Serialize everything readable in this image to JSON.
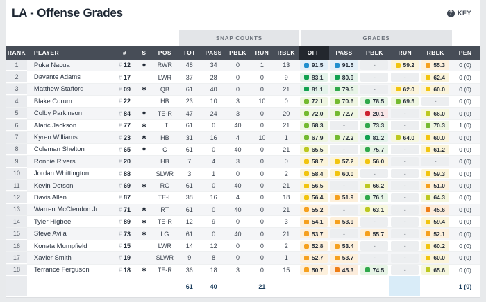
{
  "page": {
    "title": "LA - Offense Grades",
    "key_label": "KEY",
    "key_icon_glyph": "?"
  },
  "colors": {
    "header_bg": "#474d57",
    "sorted_header_bg": "#23272e",
    "footer_highlight": "#d9ecf8",
    "band_bg": "#e3e5e8"
  },
  "table": {
    "group_headers": {
      "snap_counts": "SNAP COUNTS",
      "grades": "GRADES"
    },
    "columns": {
      "rank": "RANK",
      "player": "PLAYER",
      "jersey": "#",
      "starter": "S",
      "pos": "POS",
      "snaps": [
        "TOT",
        "PASS",
        "PBLK",
        "RUN",
        "RBLK"
      ],
      "grades": [
        "OFF",
        "PASS",
        "PBLK",
        "RUN",
        "RBLK"
      ],
      "pen": "PEN"
    },
    "sorted_column": "OFF",
    "starter_glyph": "✱",
    "dash": "-",
    "rows": [
      {
        "rank": "1",
        "player": "Puka Nacua",
        "jersey": "12",
        "starter": true,
        "pos": "RWR",
        "snaps": [
          "48",
          "34",
          "0",
          "1",
          "13"
        ],
        "grades": [
          "91.5",
          "91.5",
          null,
          "59.2",
          "55.3"
        ],
        "pen": "0 (0)"
      },
      {
        "rank": "2",
        "player": "Davante Adams",
        "jersey": "17",
        "starter": false,
        "pos": "LWR",
        "snaps": [
          "37",
          "28",
          "0",
          "0",
          "9"
        ],
        "grades": [
          "83.1",
          "80.9",
          null,
          null,
          "62.4"
        ],
        "pen": "0 (0)"
      },
      {
        "rank": "3",
        "player": "Matthew Stafford",
        "jersey": "09",
        "starter": true,
        "pos": "QB",
        "snaps": [
          "61",
          "40",
          "0",
          "0",
          "21"
        ],
        "grades": [
          "81.1",
          "79.5",
          null,
          "62.0",
          "60.0"
        ],
        "pen": "0 (0)"
      },
      {
        "rank": "4",
        "player": "Blake Corum",
        "jersey": "22",
        "starter": false,
        "pos": "HB",
        "snaps": [
          "23",
          "10",
          "3",
          "10",
          "0"
        ],
        "grades": [
          "72.1",
          "70.6",
          "78.5",
          "69.5",
          null
        ],
        "pen": "0 (0)"
      },
      {
        "rank": "5",
        "player": "Colby Parkinson",
        "jersey": "84",
        "starter": true,
        "pos": "TE-R",
        "snaps": [
          "47",
          "24",
          "3",
          "0",
          "20"
        ],
        "grades": [
          "72.0",
          "72.7",
          "20.1",
          null,
          "66.0"
        ],
        "pen": "0 (0)"
      },
      {
        "rank": "6",
        "player": "Alaric Jackson",
        "jersey": "77",
        "starter": true,
        "pos": "LT",
        "snaps": [
          "61",
          "0",
          "40",
          "0",
          "21"
        ],
        "grades": [
          "68.3",
          null,
          "73.3",
          null,
          "70.3"
        ],
        "pen": "1 (0)"
      },
      {
        "rank": "7",
        "player": "Kyren Williams",
        "jersey": "23",
        "starter": true,
        "pos": "HB",
        "snaps": [
          "31",
          "16",
          "4",
          "10",
          "1"
        ],
        "grades": [
          "67.9",
          "72.2",
          "81.2",
          "64.0",
          "60.0"
        ],
        "pen": "0 (0)"
      },
      {
        "rank": "8",
        "player": "Coleman Shelton",
        "jersey": "65",
        "starter": true,
        "pos": "C",
        "snaps": [
          "61",
          "0",
          "40",
          "0",
          "21"
        ],
        "grades": [
          "65.5",
          null,
          "75.7",
          null,
          "61.2"
        ],
        "pen": "0 (0)"
      },
      {
        "rank": "9",
        "player": "Ronnie Rivers",
        "jersey": "20",
        "starter": false,
        "pos": "HB",
        "snaps": [
          "7",
          "4",
          "3",
          "0",
          "0"
        ],
        "grades": [
          "58.7",
          "57.2",
          "56.0",
          null,
          null
        ],
        "pen": "0 (0)"
      },
      {
        "rank": "10",
        "player": "Jordan Whittington",
        "jersey": "88",
        "starter": false,
        "pos": "SLWR",
        "snaps": [
          "3",
          "1",
          "0",
          "0",
          "2"
        ],
        "grades": [
          "58.4",
          "60.0",
          null,
          null,
          "59.3"
        ],
        "pen": "0 (0)"
      },
      {
        "rank": "11",
        "player": "Kevin Dotson",
        "jersey": "69",
        "starter": true,
        "pos": "RG",
        "snaps": [
          "61",
          "0",
          "40",
          "0",
          "21"
        ],
        "grades": [
          "56.5",
          null,
          "66.2",
          null,
          "51.0"
        ],
        "pen": "0 (0)"
      },
      {
        "rank": "12",
        "player": "Davis Allen",
        "jersey": "87",
        "starter": false,
        "pos": "TE-L",
        "snaps": [
          "38",
          "16",
          "4",
          "0",
          "18"
        ],
        "grades": [
          "56.4",
          "51.9",
          "76.1",
          null,
          "64.3"
        ],
        "pen": "0 (0)"
      },
      {
        "rank": "13",
        "player": "Warren McClendon Jr.",
        "jersey": "71",
        "starter": true,
        "pos": "RT",
        "snaps": [
          "61",
          "0",
          "40",
          "0",
          "21"
        ],
        "grades": [
          "55.2",
          null,
          "63.1",
          null,
          "45.6"
        ],
        "pen": "0 (0)"
      },
      {
        "rank": "14",
        "player": "Tyler Higbee",
        "jersey": "89",
        "starter": true,
        "pos": "TE-R",
        "snaps": [
          "12",
          "9",
          "0",
          "0",
          "3"
        ],
        "grades": [
          "54.1",
          "53.9",
          null,
          null,
          "59.4"
        ],
        "pen": "0 (0)"
      },
      {
        "rank": "15",
        "player": "Steve Avila",
        "jersey": "73",
        "starter": true,
        "pos": "LG",
        "snaps": [
          "61",
          "0",
          "40",
          "0",
          "21"
        ],
        "grades": [
          "53.7",
          null,
          "55.7",
          null,
          "52.1"
        ],
        "pen": "0 (0)"
      },
      {
        "rank": "16",
        "player": "Konata Mumpfield",
        "jersey": "15",
        "starter": false,
        "pos": "LWR",
        "snaps": [
          "14",
          "12",
          "0",
          "0",
          "2"
        ],
        "grades": [
          "52.8",
          "53.4",
          null,
          null,
          "60.2"
        ],
        "pen": "0 (0)"
      },
      {
        "rank": "17",
        "player": "Xavier Smith",
        "jersey": "19",
        "starter": false,
        "pos": "SLWR",
        "snaps": [
          "9",
          "8",
          "0",
          "0",
          "1"
        ],
        "grades": [
          "52.7",
          "53.7",
          null,
          null,
          "60.0"
        ],
        "pen": "0 (0)"
      },
      {
        "rank": "18",
        "player": "Terrance Ferguson",
        "jersey": "18",
        "starter": true,
        "pos": "TE-R",
        "snaps": [
          "36",
          "18",
          "3",
          "0",
          "15"
        ],
        "grades": [
          "50.7",
          "45.3",
          "74.5",
          null,
          "65.6"
        ],
        "pen": "0 (0)"
      }
    ],
    "totals": {
      "snaps": [
        "61",
        "40",
        "",
        "21",
        ""
      ],
      "pen": "1 (0)",
      "highlighted_grade_col": 3
    }
  },
  "grade_scale": [
    {
      "min": 90,
      "chip": "#1f8fce",
      "tint": "#e2eff8"
    },
    {
      "min": 80,
      "chip": "#12a150",
      "tint": "#e4f3ea"
    },
    {
      "min": 73,
      "chip": "#2fa84b",
      "tint": "#e7f4e6"
    },
    {
      "min": 67,
      "chip": "#74ba30",
      "tint": "#eff6e2"
    },
    {
      "min": 62.5,
      "chip": "#bcc81f",
      "tint": "#f6f7de"
    },
    {
      "min": 56,
      "chip": "#f1c40f",
      "tint": "#fbf4da"
    },
    {
      "min": 48,
      "chip": "#f5a01e",
      "tint": "#fdf0dc"
    },
    {
      "min": 42,
      "chip": "#ee7d15",
      "tint": "#fcecdb"
    },
    {
      "min": 0,
      "chip": "#cd2130",
      "tint": "#f9e6e7"
    }
  ]
}
